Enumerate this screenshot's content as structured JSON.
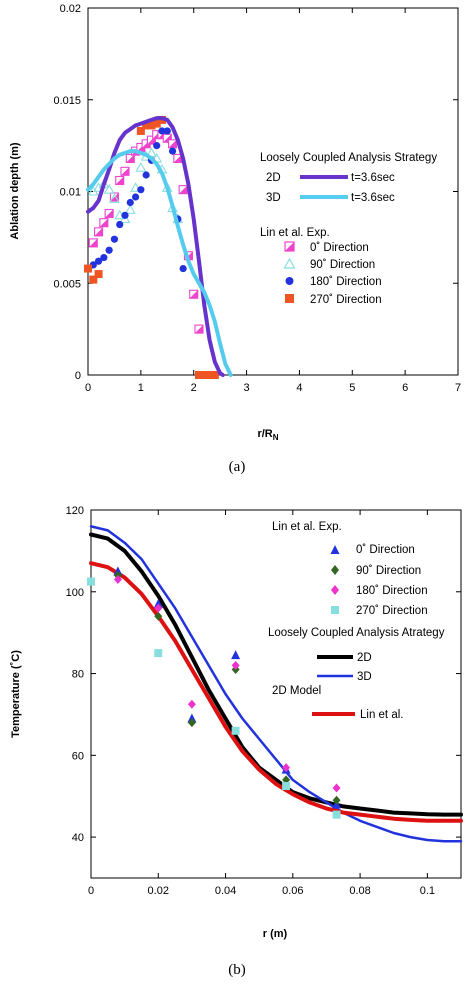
{
  "figure": {
    "panels": [
      {
        "label": "(a)",
        "chart_data": {
          "type": "scatter",
          "title": "",
          "xlabel": "r/R",
          "xlabel_sub": "N",
          "ylabel": "Ablation depth (m)",
          "xlim": [
            0,
            7
          ],
          "ylim": [
            0,
            0.02
          ],
          "xticks": [
            "0",
            "1",
            "2",
            "3",
            "4",
            "5",
            "6",
            "7"
          ],
          "yticks": [
            "0",
            "0.005",
            "0.01",
            "0.015",
            "0.02"
          ],
          "xtick_values": [
            0,
            1,
            2,
            3,
            4,
            5,
            6,
            7
          ],
          "ytick_values": [
            0,
            0.005,
            0.01,
            0.015,
            0.02
          ],
          "legend_headers": [
            "Loosely Coupled Analysis Strategy",
            "Lin et al. Exp."
          ],
          "series": [
            {
              "name": "t=3.6sec",
              "prefix": "2D",
              "kind": "line",
              "color": "#6633cc",
              "x": [
                0,
                0.1,
                0.2,
                0.3,
                0.4,
                0.5,
                0.6,
                0.7,
                0.8,
                0.9,
                1.0,
                1.1,
                1.2,
                1.3,
                1.4,
                1.5,
                1.6,
                1.7,
                1.8,
                1.9,
                2.0,
                2.1,
                2.2,
                2.3,
                2.4,
                2.5,
                2.55
              ],
              "y": [
                0.0089,
                0.0091,
                0.0095,
                0.0104,
                0.0112,
                0.0121,
                0.0128,
                0.0132,
                0.0134,
                0.0136,
                0.0137,
                0.0138,
                0.0139,
                0.014,
                0.014,
                0.0139,
                0.0135,
                0.0128,
                0.0118,
                0.0104,
                0.0085,
                0.0062,
                0.0038,
                0.0019,
                0.0007,
                0.0001,
                0
              ]
            },
            {
              "name": "t=3.6sec",
              "prefix": "3D",
              "kind": "line",
              "color": "#55ccee",
              "x": [
                0,
                0.1,
                0.2,
                0.3,
                0.4,
                0.5,
                0.6,
                0.7,
                0.8,
                0.9,
                1.0,
                1.1,
                1.2,
                1.3,
                1.4,
                1.5,
                1.6,
                1.7,
                1.8,
                1.9,
                2.0,
                2.1,
                2.2,
                2.3,
                2.4,
                2.5,
                2.6,
                2.7
              ],
              "y": [
                0.0101,
                0.0104,
                0.0108,
                0.0112,
                0.0115,
                0.0118,
                0.012,
                0.0121,
                0.0122,
                0.0122,
                0.0121,
                0.012,
                0.0118,
                0.0115,
                0.011,
                0.0102,
                0.0092,
                0.0081,
                0.0071,
                0.0062,
                0.0055,
                0.005,
                0.0045,
                0.0038,
                0.0029,
                0.0017,
                0.0006,
                0
              ]
            },
            {
              "name": "0˚ Direction",
              "kind": "marker",
              "marker": "half-square",
              "color": "#ee44cc",
              "x": [
                0.1,
                0.2,
                0.3,
                0.4,
                0.5,
                0.6,
                0.7,
                0.8,
                0.9,
                1.0,
                1.1,
                1.2,
                1.3,
                1.4,
                1.5,
                1.6,
                1.7,
                1.8,
                1.9,
                2.0,
                2.1
              ],
              "y": [
                0.0072,
                0.0078,
                0.0083,
                0.0088,
                0.0097,
                0.0106,
                0.0111,
                0.0118,
                0.0122,
                0.0124,
                0.0126,
                0.0128,
                0.0131,
                0.0131,
                0.0129,
                0.0126,
                0.0118,
                0.0101,
                0.0065,
                0.0044,
                0.0025
              ]
            },
            {
              "name": "90˚ Direction",
              "kind": "marker",
              "marker": "triangle-open",
              "color": "#88dddd",
              "x": [
                0.1,
                0.2,
                0.3,
                0.4,
                0.5,
                0.6,
                0.7,
                0.8,
                0.9,
                1.0,
                1.1,
                1.2,
                1.3,
                1.4,
                1.5,
                1.6,
                1.7
              ],
              "y": [
                0.01,
                0.0102,
                0.0104,
                0.0101,
                0.0096,
                0.0087,
                0.0085,
                0.009,
                0.0102,
                0.0113,
                0.0119,
                0.0121,
                0.0118,
                0.0112,
                0.0102,
                0.0091,
                0.0085
              ]
            },
            {
              "name": "180˚ Direction",
              "kind": "marker",
              "marker": "circle",
              "color": "#2233dd",
              "x": [
                0.1,
                0.2,
                0.3,
                0.4,
                0.5,
                0.6,
                0.7,
                0.8,
                0.9,
                1.0,
                1.1,
                1.2,
                1.3,
                1.4,
                1.5,
                1.6,
                1.7,
                1.8
              ],
              "y": [
                0.006,
                0.0062,
                0.0064,
                0.0068,
                0.0074,
                0.0082,
                0.0087,
                0.0094,
                0.0097,
                0.0101,
                0.0109,
                0.0117,
                0.0125,
                0.0133,
                0.0133,
                0.0122,
                0.0085,
                0.0058
              ]
            },
            {
              "name": "270˚ Direction",
              "kind": "marker",
              "marker": "square",
              "color": "#ee5522",
              "x": [
                0,
                0.1,
                0.2,
                1.0,
                1.1,
                1.2,
                1.3,
                1.4,
                2.1,
                2.2,
                2.3,
                2.4
              ],
              "y": [
                0.0058,
                0.0052,
                0.0055,
                0.0133,
                0.0136,
                0.0136,
                0.0137,
                0.0139,
                0,
                0,
                0,
                0
              ]
            }
          ]
        }
      },
      {
        "label": "(b)",
        "chart_data": {
          "type": "scatter",
          "title": "",
          "xlabel": "r (m)",
          "ylabel": "Temperature (˚C)",
          "xlim": [
            0,
            0.11
          ],
          "ylim": [
            30,
            120
          ],
          "xticks": [
            "0",
            "0.02",
            "0.04",
            "0.06",
            "0.08",
            "0.1"
          ],
          "yticks": [
            "40",
            "60",
            "80",
            "100",
            "120"
          ],
          "xtick_values": [
            0,
            0.02,
            0.04,
            0.06,
            0.08,
            0.1
          ],
          "ytick_values": [
            40,
            60,
            80,
            100,
            120
          ],
          "legend_headers": [
            "Lin et al. Exp.",
            "Loosely Coupled Analysis Atrategy",
            "2D Model"
          ],
          "series": [
            {
              "name": "0˚ Direction",
              "kind": "marker",
              "marker": "triangle",
              "color": "#2233dd",
              "x": [
                0.008,
                0.02,
                0.03,
                0.043,
                0.058,
                0.073
              ],
              "y": [
                105,
                97,
                69,
                84.5,
                56.5,
                48
              ]
            },
            {
              "name": "90˚ Direction",
              "kind": "marker",
              "marker": "diamond",
              "color": "#336622",
              "x": [
                0.008,
                0.02,
                0.03,
                0.043,
                0.058,
                0.073
              ],
              "y": [
                104,
                94,
                68,
                81,
                54,
                49
              ]
            },
            {
              "name": "180˚ Direction",
              "kind": "marker",
              "marker": "diamond",
              "color": "#ee33cc",
              "x": [
                0.008,
                0.02,
                0.03,
                0.043,
                0.058,
                0.073
              ],
              "y": [
                103,
                96,
                72.5,
                82,
                57,
                52
              ]
            },
            {
              "name": "270˚ Direction",
              "kind": "marker",
              "marker": "square",
              "color": "#88dddd",
              "x": [
                0,
                0.02,
                0.043,
                0.058,
                0.073
              ],
              "y": [
                102.5,
                85,
                66,
                52.5,
                45.5
              ]
            },
            {
              "name": "2D",
              "kind": "line",
              "color": "#000000",
              "x": [
                0,
                0.005,
                0.01,
                0.015,
                0.02,
                0.025,
                0.03,
                0.035,
                0.04,
                0.045,
                0.05,
                0.055,
                0.06,
                0.065,
                0.07,
                0.075,
                0.08,
                0.085,
                0.09,
                0.095,
                0.1,
                0.105,
                0.11
              ],
              "y": [
                114,
                113,
                110,
                105,
                99,
                92,
                84,
                76,
                69,
                62,
                57,
                54,
                51,
                49.5,
                48.5,
                47.5,
                47,
                46.5,
                46,
                45.8,
                45.6,
                45.5,
                45.5
              ]
            },
            {
              "name": "3D",
              "kind": "line",
              "color": "#2233dd",
              "x": [
                0,
                0.005,
                0.01,
                0.015,
                0.02,
                0.025,
                0.03,
                0.035,
                0.04,
                0.045,
                0.05,
                0.055,
                0.06,
                0.065,
                0.07,
                0.075,
                0.08,
                0.085,
                0.09,
                0.095,
                0.1,
                0.105,
                0.11
              ],
              "y": [
                116,
                115,
                112,
                108,
                102,
                96,
                89,
                82,
                75,
                69,
                64,
                59,
                54,
                51,
                48.5,
                46,
                44,
                42.5,
                41,
                40,
                39.3,
                39,
                39
              ]
            },
            {
              "name": "Lin et al.",
              "kind": "line",
              "color": "#dd1111",
              "x": [
                0,
                0.005,
                0.01,
                0.015,
                0.02,
                0.025,
                0.03,
                0.035,
                0.04,
                0.045,
                0.05,
                0.055,
                0.06,
                0.065,
                0.07,
                0.075,
                0.08,
                0.085,
                0.09,
                0.095,
                0.1,
                0.105,
                0.11
              ],
              "y": [
                107,
                106,
                103.5,
                99.5,
                94,
                88,
                81,
                74,
                67,
                61,
                56.5,
                53,
                50.5,
                48.5,
                47,
                46,
                45.5,
                45,
                44.5,
                44.2,
                44,
                44,
                44
              ]
            }
          ]
        }
      }
    ]
  }
}
